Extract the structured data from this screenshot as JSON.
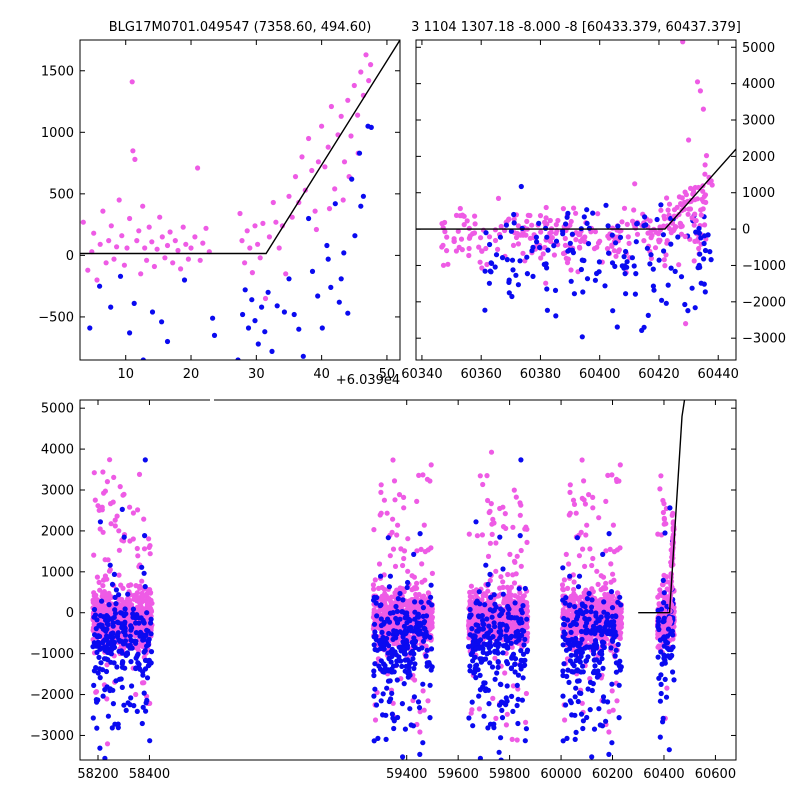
{
  "colors": {
    "magenta": "#ee5be5",
    "blue": "#0a0af0",
    "model": "#000000"
  },
  "chart_data": [
    {
      "type": "scatter",
      "title": "BLG17M0701.049547 (7358.60, 494.60)",
      "x_offset_label": "+6.039e4",
      "xlim": [
        3,
        52
      ],
      "ylim": [
        -850,
        1750
      ],
      "xticks": [
        10,
        20,
        30,
        40,
        50
      ],
      "xtick_labels": [
        "10",
        "20",
        "30",
        "40",
        "50"
      ],
      "yticks": [
        -500,
        0,
        500,
        1000,
        1500
      ],
      "ytick_labels": [
        "−500",
        "0",
        "500",
        "1000",
        "1500"
      ],
      "y_axis_side": "left",
      "model_line": {
        "x": [
          3,
          31.5,
          52
        ],
        "y": [
          15,
          15,
          1750
        ]
      },
      "series": [
        {
          "color_key": "magenta",
          "points": [
            [
              3.5,
              270
            ],
            [
              4.2,
              -120
            ],
            [
              4.8,
              30
            ],
            [
              5.1,
              180
            ],
            [
              5.6,
              -200
            ],
            [
              6.1,
              90
            ],
            [
              6.5,
              360
            ],
            [
              7.0,
              -60
            ],
            [
              7.4,
              120
            ],
            [
              7.8,
              240
            ],
            [
              8.2,
              -30
            ],
            [
              8.6,
              70
            ],
            [
              9.0,
              450
            ],
            [
              9.4,
              160
            ],
            [
              9.8,
              -80
            ],
            [
              10.2,
              60
            ],
            [
              10.6,
              300
            ],
            [
              11.0,
              1410
            ],
            [
              11.1,
              850
            ],
            [
              11.4,
              780
            ],
            [
              11.7,
              120
            ],
            [
              12.0,
              200
            ],
            [
              12.3,
              -150
            ],
            [
              12.6,
              400
            ],
            [
              12.9,
              60
            ],
            [
              13.2,
              -40
            ],
            [
              13.6,
              230
            ],
            [
              14.0,
              110
            ],
            [
              14.4,
              -90
            ],
            [
              14.8,
              50
            ],
            [
              15.2,
              310
            ],
            [
              15.6,
              150
            ],
            [
              16.0,
              -20
            ],
            [
              16.4,
              80
            ],
            [
              16.8,
              190
            ],
            [
              17.2,
              -60
            ],
            [
              17.6,
              120
            ],
            [
              18.0,
              40
            ],
            [
              18.4,
              -110
            ],
            [
              18.8,
              230
            ],
            [
              19.2,
              90
            ],
            [
              19.6,
              -30
            ],
            [
              20.0,
              60
            ],
            [
              20.6,
              150
            ],
            [
              21.0,
              710
            ],
            [
              21.4,
              -40
            ],
            [
              21.8,
              100
            ],
            [
              22.3,
              220
            ],
            [
              22.8,
              30
            ],
            [
              27.5,
              340
            ],
            [
              27.8,
              120
            ],
            [
              28.2,
              -60
            ],
            [
              28.6,
              200
            ],
            [
              29.0,
              60
            ],
            [
              29.4,
              -140
            ],
            [
              29.8,
              240
            ],
            [
              30.2,
              90
            ],
            [
              30.6,
              -20
            ],
            [
              31.0,
              260
            ],
            [
              31.4,
              -350
            ],
            [
              32.0,
              150
            ],
            [
              32.6,
              430
            ],
            [
              33.0,
              270
            ],
            [
              33.5,
              60
            ],
            [
              34.0,
              240
            ],
            [
              34.5,
              -150
            ],
            [
              35.0,
              480
            ],
            [
              35.5,
              310
            ],
            [
              36.0,
              640
            ],
            [
              36.5,
              430
            ],
            [
              37.0,
              800
            ],
            [
              37.5,
              530
            ],
            [
              38.0,
              950
            ],
            [
              38.5,
              690
            ],
            [
              39.0,
              360
            ],
            [
              39.5,
              760
            ],
            [
              40.0,
              1050
            ],
            [
              40.5,
              720
            ],
            [
              41.0,
              880
            ],
            [
              41.5,
              1210
            ],
            [
              42.0,
              540
            ],
            [
              42.5,
              980
            ],
            [
              43.0,
              1130
            ],
            [
              43.5,
              760
            ],
            [
              44.0,
              1260
            ],
            [
              44.5,
              970
            ],
            [
              45.0,
              1380
            ],
            [
              45.5,
              1140
            ],
            [
              46.0,
              1490
            ],
            [
              46.4,
              1300
            ],
            [
              46.8,
              1630
            ],
            [
              47.2,
              1420
            ],
            [
              47.5,
              1550
            ],
            [
              44.2,
              640
            ],
            [
              45.6,
              830
            ],
            [
              43.3,
              450
            ],
            [
              41.2,
              380
            ],
            [
              39.2,
              210
            ]
          ]
        },
        {
          "color_key": "blue",
          "points": [
            [
              4.5,
              -590
            ],
            [
              6.0,
              -250
            ],
            [
              7.7,
              -420
            ],
            [
              9.2,
              -170
            ],
            [
              10.6,
              -630
            ],
            [
              11.3,
              -390
            ],
            [
              12.7,
              -850
            ],
            [
              14.1,
              -460
            ],
            [
              15.5,
              -540
            ],
            [
              16.4,
              -700
            ],
            [
              19.0,
              -200
            ],
            [
              23.3,
              -510
            ],
            [
              23.6,
              -650
            ],
            [
              27.2,
              -850
            ],
            [
              27.9,
              -480
            ],
            [
              28.3,
              -280
            ],
            [
              28.8,
              -590
            ],
            [
              29.3,
              -360
            ],
            [
              29.8,
              -530
            ],
            [
              30.3,
              -720
            ],
            [
              30.8,
              -420
            ],
            [
              31.3,
              -620
            ],
            [
              31.8,
              -300
            ],
            [
              32.4,
              -780
            ],
            [
              33.2,
              -410
            ],
            [
              34.3,
              -460
            ],
            [
              35.0,
              -190
            ],
            [
              35.8,
              -480
            ],
            [
              36.5,
              -600
            ],
            [
              37.2,
              -820
            ],
            [
              38.0,
              300
            ],
            [
              38.6,
              -130
            ],
            [
              39.4,
              -330
            ],
            [
              40.1,
              -590
            ],
            [
              40.8,
              80
            ],
            [
              41.4,
              -260
            ],
            [
              42.1,
              420
            ],
            [
              42.7,
              -380
            ],
            [
              43.4,
              20
            ],
            [
              44.0,
              -470
            ],
            [
              44.6,
              620
            ],
            [
              45.1,
              160
            ],
            [
              45.8,
              830
            ],
            [
              46.4,
              480
            ],
            [
              47.1,
              1050
            ],
            [
              47.6,
              1040
            ],
            [
              46.0,
              400
            ],
            [
              43.0,
              -190
            ],
            [
              41.0,
              -30
            ]
          ]
        }
      ]
    },
    {
      "type": "scatter",
      "title": "3 1104 1307.18 -8.000 -8 [60433.379, 60437.379]",
      "xlim": [
        60338,
        60446
      ],
      "ylim": [
        -3600,
        5200
      ],
      "xticks": [
        60340,
        60360,
        60380,
        60400,
        60420,
        60440
      ],
      "xtick_labels": [
        "60340",
        "60360",
        "60380",
        "60400",
        "60420",
        "60440"
      ],
      "yticks": [
        -3000,
        -2000,
        -1000,
        0,
        1000,
        2000,
        3000,
        4000,
        5000
      ],
      "ytick_labels": [
        "−3000",
        "−2000",
        "−1000",
        "0",
        "1000",
        "2000",
        "3000",
        "4000",
        "5000"
      ],
      "y_axis_side": "right",
      "model_line": {
        "x": [
          60338,
          60422,
          60446
        ],
        "y": [
          0,
          0,
          2200
        ]
      }
    },
    {
      "type": "scatter",
      "xlim": [
        58130,
        60680
      ],
      "ylim": [
        -3600,
        5200
      ],
      "xticks": [
        58200,
        58400,
        59400,
        59600,
        59800,
        60000,
        60200,
        60400,
        60600
      ],
      "xtick_labels": [
        "58200",
        "58400",
        "59400",
        "59600",
        "59800",
        "60000",
        "60200",
        "60400",
        "60600"
      ],
      "yticks": [
        -3000,
        -2000,
        -1000,
        0,
        1000,
        2000,
        3000,
        4000,
        5000
      ],
      "ytick_labels": [
        "−3000",
        "−2000",
        "−1000",
        "0",
        "1000",
        "2000",
        "3000",
        "4000",
        "5000"
      ],
      "y_axis_side": "left",
      "axis_break": true,
      "seasons": [
        {
          "x_range": [
            58180,
            58410
          ]
        },
        {
          "x_range": [
            59270,
            59500
          ]
        },
        {
          "x_range": [
            59640,
            59870
          ]
        },
        {
          "x_range": [
            60005,
            60235
          ]
        },
        {
          "x_range": [
            60375,
            60440
          ]
        }
      ],
      "model_line": {
        "x": [
          60300,
          60422,
          60470,
          60480
        ],
        "y": [
          0,
          0,
          4800,
          5200
        ]
      }
    }
  ]
}
